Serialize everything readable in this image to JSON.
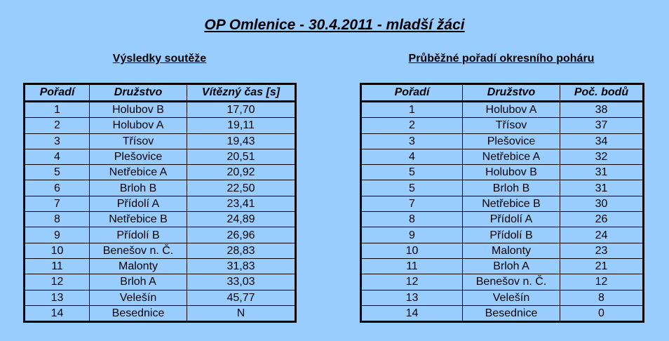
{
  "title": "OP Omlenice - 30.4.2011 - mladší žáci",
  "results": {
    "heading": "Výsledky soutěže",
    "columns": [
      "Pořadí",
      "Družstvo",
      "Vítězný čas [s]"
    ],
    "rows": [
      [
        "1",
        "Holubov B",
        "17,70"
      ],
      [
        "2",
        "Holubov A",
        "19,11"
      ],
      [
        "3",
        "Třísov",
        "19,43"
      ],
      [
        "4",
        "Plešovice",
        "20,51"
      ],
      [
        "5",
        "Netřebice A",
        "20,92"
      ],
      [
        "6",
        "Brloh B",
        "22,50"
      ],
      [
        "7",
        "Přídolí A",
        "23,41"
      ],
      [
        "8",
        "Netřebice B",
        "24,89"
      ],
      [
        "9",
        "Přídolí B",
        "26,96"
      ],
      [
        "10",
        "Benešov n. Č.",
        "28,83"
      ],
      [
        "11",
        "Malonty",
        "31,83"
      ],
      [
        "12",
        "Brloh A",
        "33,03"
      ],
      [
        "13",
        "Velešín",
        "45,77"
      ],
      [
        "14",
        "Besednice",
        "N"
      ]
    ]
  },
  "standings": {
    "heading": "Průběžné pořadí okresního poháru",
    "columns": [
      "Pořadí",
      "Družstvo",
      "Poč. bodů"
    ],
    "rows": [
      [
        "1",
        "Holubov A",
        "38"
      ],
      [
        "2",
        "Třísov",
        "37"
      ],
      [
        "3",
        "Plešovice",
        "34"
      ],
      [
        "4",
        "Netřebice A",
        "32"
      ],
      [
        "5",
        "Holubov B",
        "31"
      ],
      [
        "5",
        "Brloh B",
        "31"
      ],
      [
        "7",
        "Netřebice B",
        "30"
      ],
      [
        "8",
        "Přídolí A",
        "26"
      ],
      [
        "9",
        "Přídolí B",
        "24"
      ],
      [
        "10",
        "Malonty",
        "23"
      ],
      [
        "11",
        "Brloh A",
        "21"
      ],
      [
        "12",
        "Benešov n. Č.",
        "12"
      ],
      [
        "13",
        "Velešín",
        "8"
      ],
      [
        "14",
        "Besednice",
        "0"
      ]
    ]
  }
}
